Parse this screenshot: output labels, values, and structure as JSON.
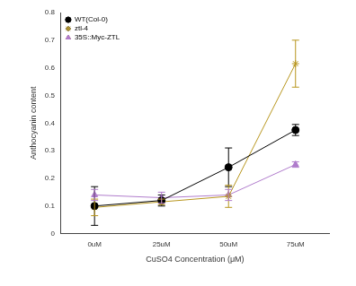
{
  "chart_data": {
    "type": "line",
    "x_label": "CuSO4 Concentration (μM)",
    "y_label": "Anthocyanin content",
    "categories": [
      "0uM",
      "25uM",
      "50uM",
      "75uM"
    ],
    "series": [
      {
        "name": "WT(Col-0)",
        "color": "#000000",
        "marker": "circle",
        "values": [
          0.1,
          0.12,
          0.24,
          0.375
        ],
        "errors": [
          0.07,
          0.02,
          0.07,
          0.02
        ]
      },
      {
        "name": "ztl-4",
        "color": "#b8961e",
        "marker": "star",
        "values": [
          0.095,
          0.115,
          0.135,
          0.615
        ],
        "errors": [
          0.03,
          0.01,
          0.04,
          0.085
        ]
      },
      {
        "name": "35S::Myc-ZTL",
        "color": "#b07ccc",
        "marker": "triangle",
        "values": [
          0.14,
          0.13,
          0.14,
          0.25
        ],
        "errors": [
          0.02,
          0.02,
          0.02,
          0.01
        ]
      }
    ],
    "ylim": [
      0,
      0.8
    ],
    "yticks": [
      0,
      0.1,
      0.2,
      0.3,
      0.4,
      0.5,
      0.6,
      0.7,
      0.8
    ],
    "grid": false,
    "legend": "upper left"
  }
}
